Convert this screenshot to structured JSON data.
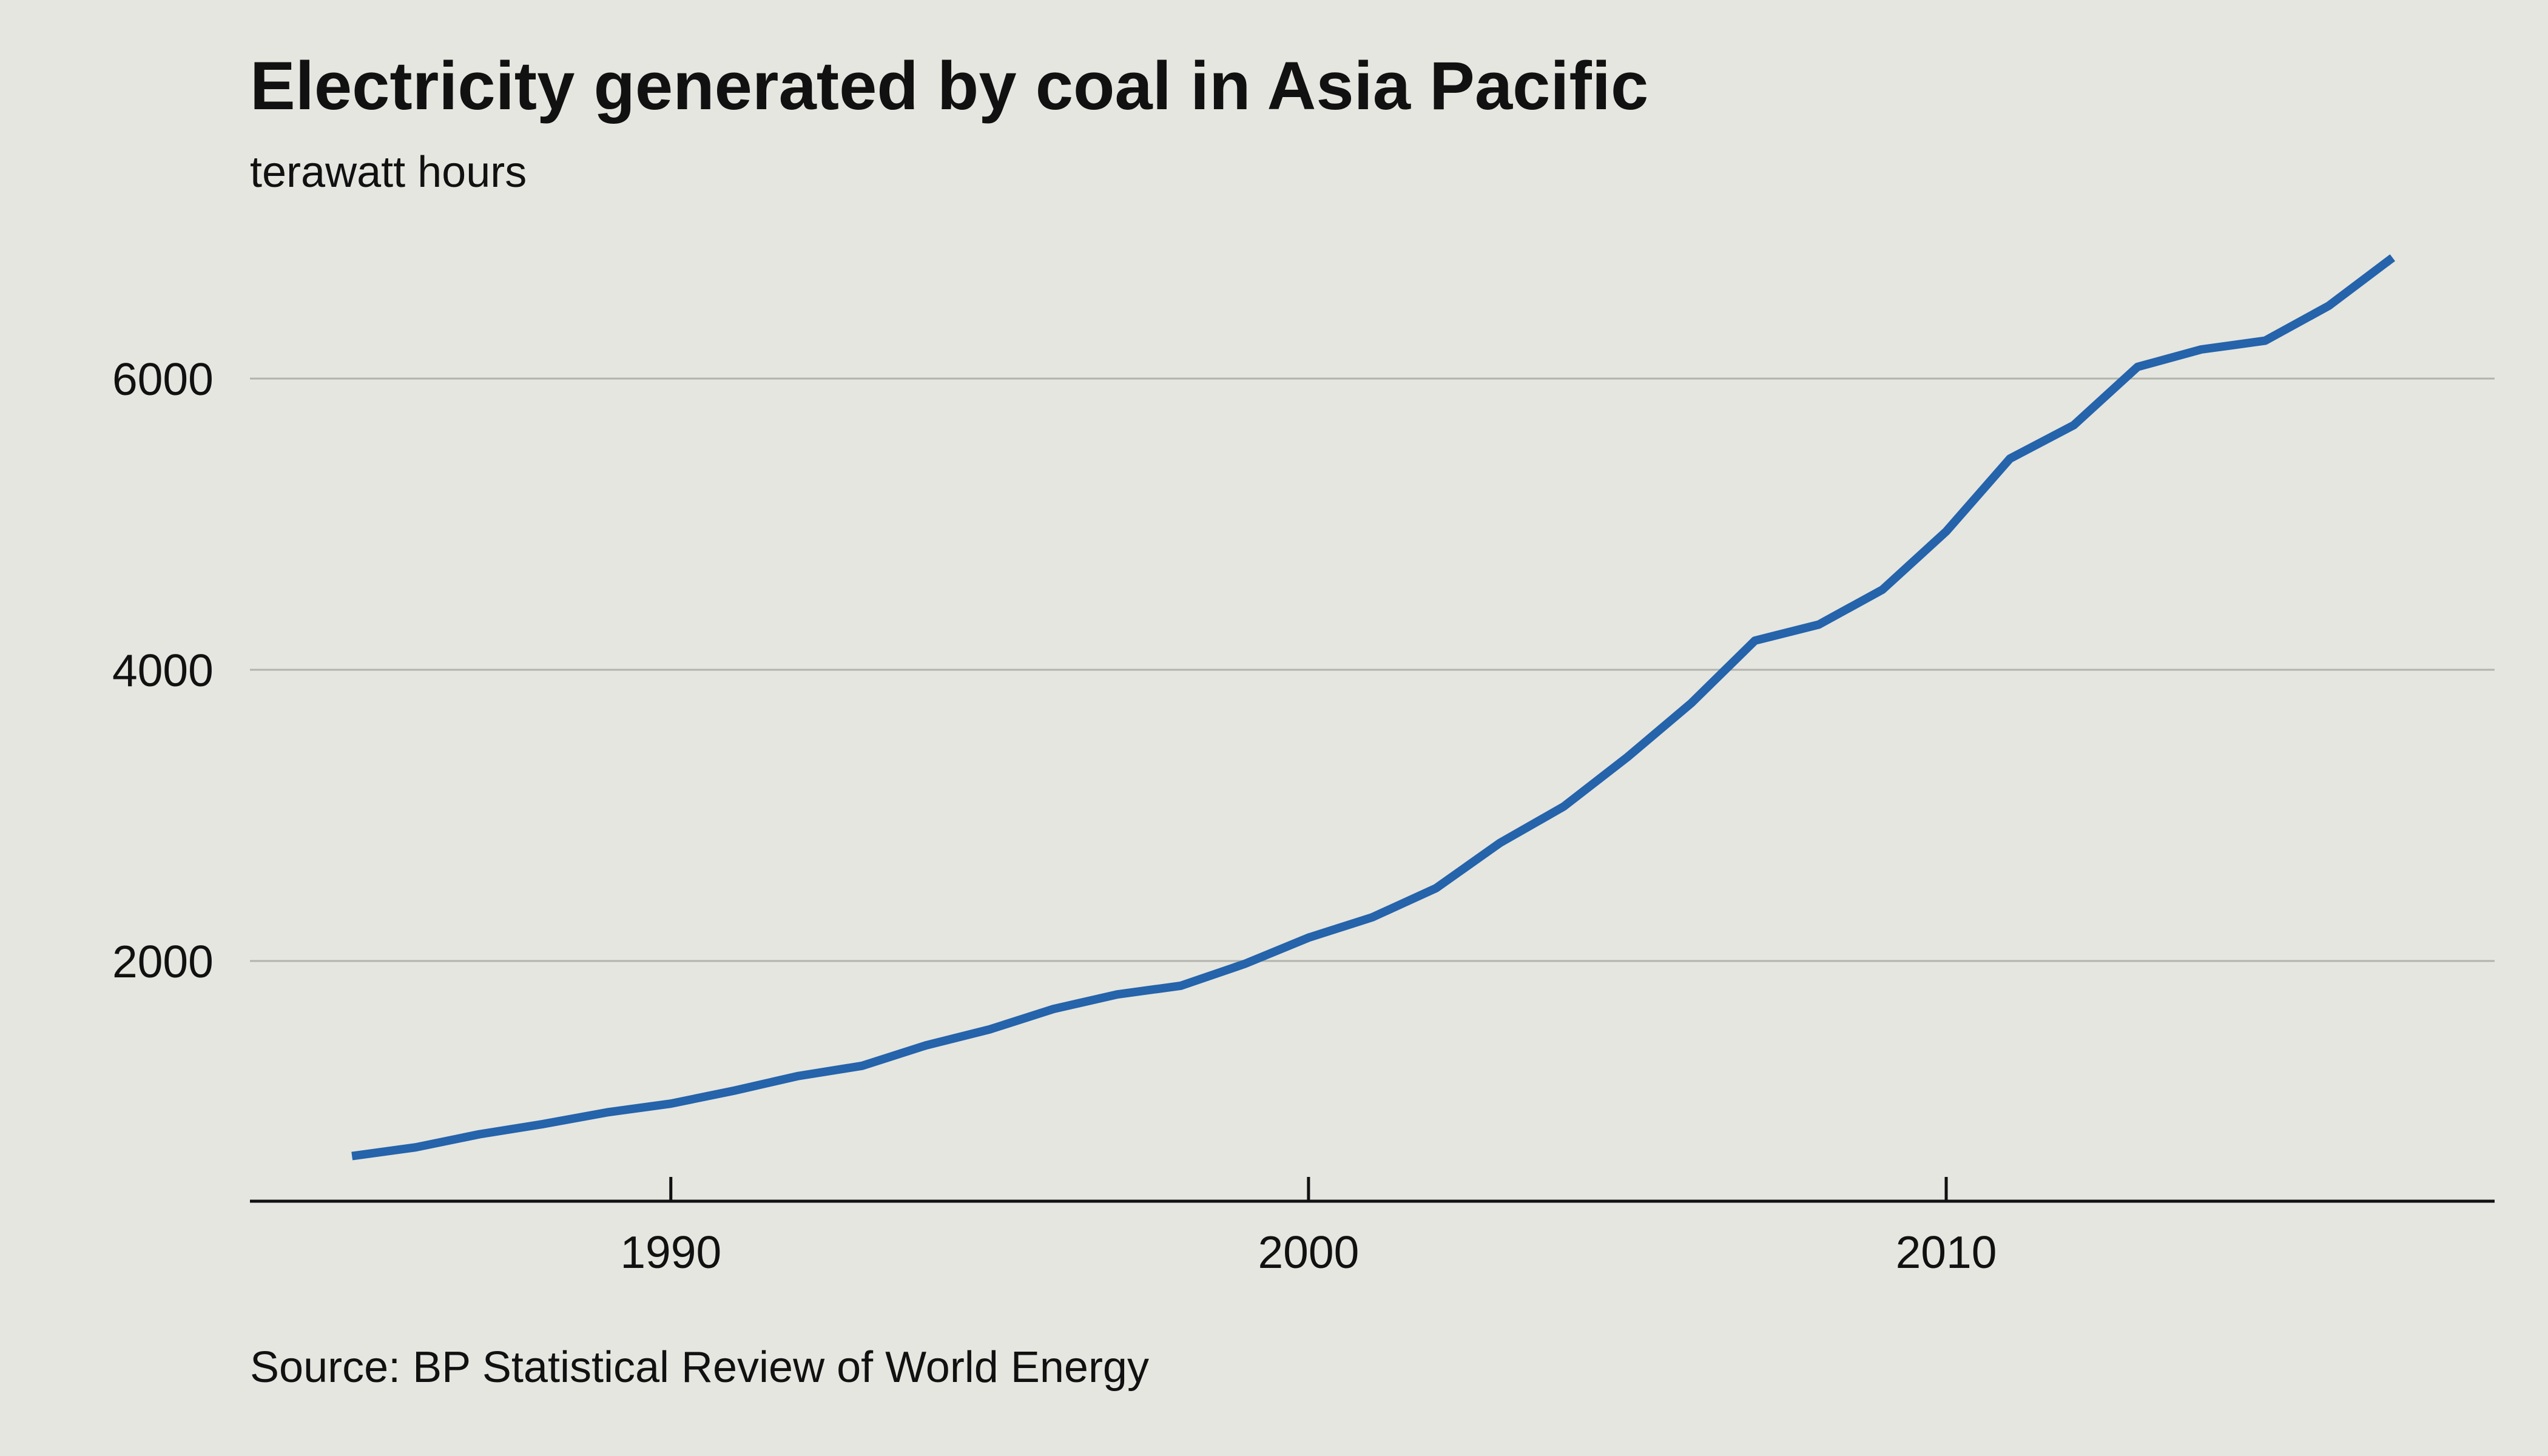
{
  "chart_data": {
    "type": "line",
    "title": "Electricity generated by coal in Asia Pacific",
    "subtitle": "terawatt hours",
    "source": "Source: BP Statistical Review of World Energy",
    "xlabel": "",
    "ylabel": "",
    "x_ticks": [
      1990,
      2000,
      2010
    ],
    "y_ticks": [
      2000,
      4000,
      6000
    ],
    "xlim": [
      1983.4,
      2018.6
    ],
    "ylim": [
      0,
      7000
    ],
    "grid": true,
    "line_color": "#2563ab",
    "series": [
      {
        "x": [
          1985,
          1986,
          1987,
          1988,
          1989,
          1990,
          1991,
          1992,
          1993,
          1994,
          1995,
          1996,
          1997,
          1998,
          1999,
          2000,
          2001,
          2002,
          2003,
          2004,
          2005,
          2006,
          2007,
          2008,
          2009,
          2010,
          2011,
          2012,
          2013,
          2014,
          2015,
          2016,
          2017
        ],
        "values": [
          660,
          720,
          810,
          880,
          960,
          1020,
          1110,
          1210,
          1280,
          1420,
          1530,
          1670,
          1770,
          1830,
          1980,
          2160,
          2300,
          2500,
          2810,
          3060,
          3400,
          3770,
          4200,
          4310,
          4550,
          4950,
          5450,
          5680,
          6080,
          6200,
          6260,
          6500,
          6830
        ]
      }
    ]
  }
}
